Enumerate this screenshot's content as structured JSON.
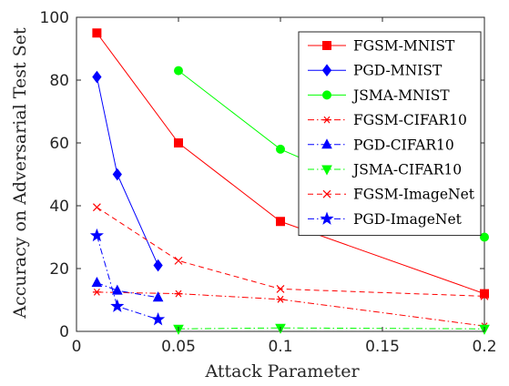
{
  "chart_data": {
    "type": "line",
    "xlabel": "Attack Parameter",
    "ylabel": "Accuracy on Adversarial Test Set",
    "xlim": [
      0,
      0.2
    ],
    "ylim": [
      0,
      100
    ],
    "xticks": [
      0,
      0.05,
      0.1,
      0.15,
      0.2
    ],
    "xtick_labels": [
      "0",
      "0.05",
      "0.1",
      "0.15",
      "0.2"
    ],
    "yticks": [
      0,
      20,
      40,
      60,
      80,
      100
    ],
    "ytick_labels": [
      "0",
      "20",
      "40",
      "60",
      "80",
      "100"
    ],
    "grid": false,
    "legend_position": "top-right",
    "series": [
      {
        "name": "FGSM-MNIST",
        "color": "#ff0000",
        "dash": "solid",
        "marker": "square",
        "x": [
          0.01,
          0.05,
          0.1,
          0.2
        ],
        "y": [
          95,
          60,
          35,
          12
        ]
      },
      {
        "name": "PGD-MNIST",
        "color": "#0000ff",
        "dash": "solid",
        "marker": "diamond",
        "x": [
          0.01,
          0.02,
          0.04
        ],
        "y": [
          81,
          50,
          21
        ]
      },
      {
        "name": "JSMA-MNIST",
        "color": "#00ff00",
        "dash": "solid",
        "marker": "circle",
        "x": [
          0.05,
          0.1,
          0.2
        ],
        "y": [
          83,
          58,
          30
        ]
      },
      {
        "name": "FGSM-CIFAR10",
        "color": "#ff0000",
        "dash": "dashdot",
        "marker": "asterisk",
        "x": [
          0.01,
          0.05,
          0.1,
          0.2
        ],
        "y": [
          12.5,
          12,
          10.2,
          1.7
        ]
      },
      {
        "name": "PGD-CIFAR10",
        "color": "#0000ff",
        "dash": "dashdot",
        "marker": "triangle-up",
        "x": [
          0.01,
          0.02,
          0.04
        ],
        "y": [
          15.5,
          13,
          10.8
        ]
      },
      {
        "name": "JSMA-CIFAR10",
        "color": "#00ff00",
        "dash": "dashdot",
        "marker": "triangle-down",
        "x": [
          0.05,
          0.1,
          0.2
        ],
        "y": [
          0.8,
          1.1,
          0.8
        ]
      },
      {
        "name": "FGSM-ImageNet",
        "color": "#ff0000",
        "dash": "dashed",
        "marker": "x",
        "x": [
          0.01,
          0.05,
          0.1,
          0.2
        ],
        "y": [
          39.5,
          22.5,
          13.5,
          11.2
        ]
      },
      {
        "name": "PGD-ImageNet",
        "color": "#0000ff",
        "dash": "dashdot",
        "marker": "star",
        "x": [
          0.01,
          0.02,
          0.04
        ],
        "y": [
          30.5,
          8,
          3.8
        ]
      }
    ]
  }
}
